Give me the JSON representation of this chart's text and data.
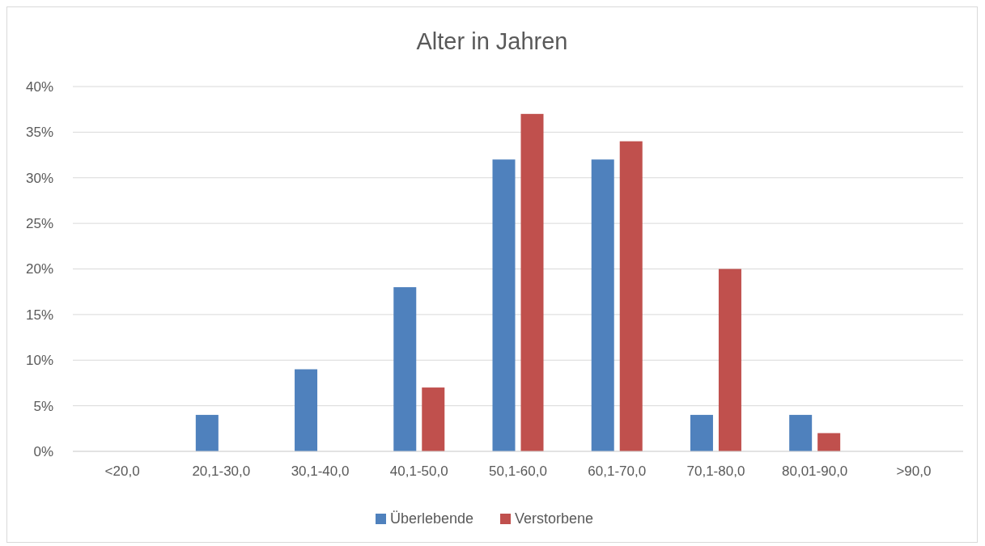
{
  "chart_data": {
    "type": "bar",
    "title": "Alter in Jahren",
    "categories": [
      "<20,0",
      "20,1-30,0",
      "30,1-40,0",
      "40,1-50,0",
      "50,1-60,0",
      "60,1-70,0",
      "70,1-80,0",
      "80,01-90,0",
      ">90,0"
    ],
    "series": [
      {
        "name": "Überlebende",
        "color": "#4f81bd",
        "values": [
          0,
          4,
          9,
          18,
          32,
          32,
          4,
          4,
          0
        ]
      },
      {
        "name": "Verstorbene",
        "color": "#c0504d",
        "values": [
          0,
          0,
          0,
          7,
          37,
          34,
          20,
          2,
          0
        ]
      }
    ],
    "ylim": [
      0,
      40
    ],
    "yticks": [
      {
        "value": 0,
        "label": "0%"
      },
      {
        "value": 5,
        "label": "5%"
      },
      {
        "value": 10,
        "label": "10%"
      },
      {
        "value": 15,
        "label": "15%"
      },
      {
        "value": 20,
        "label": "20%"
      },
      {
        "value": 25,
        "label": "25%"
      },
      {
        "value": 30,
        "label": "30%"
      },
      {
        "value": 35,
        "label": "35%"
      },
      {
        "value": 40,
        "label": "40%"
      }
    ],
    "grid": "y",
    "legend": "bottom"
  }
}
